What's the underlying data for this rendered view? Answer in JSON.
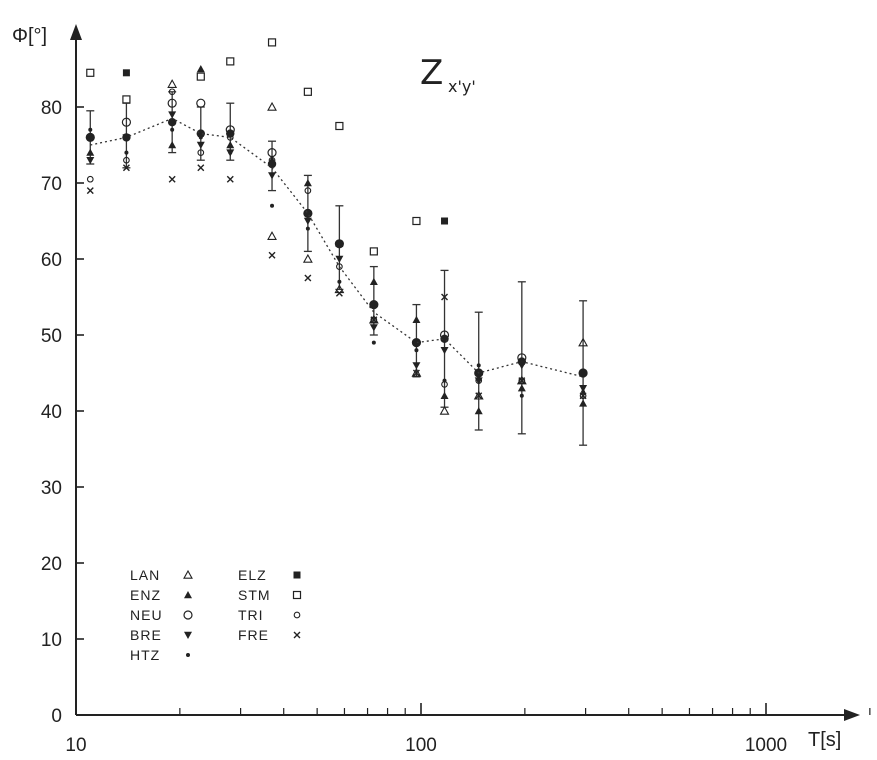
{
  "chart_data": {
    "type": "scatter",
    "title": "Z",
    "title_subscript": "x'y'",
    "xlabel": "T[s]",
    "ylabel": "Φ[°]",
    "x_scale": "log",
    "xlim": [
      10,
      3000
    ],
    "ylim": [
      0,
      90
    ],
    "x_ticks": [
      10,
      100,
      1000
    ],
    "x_tick_labels": [
      "10",
      "100",
      "1000"
    ],
    "y_ticks": [
      0,
      10,
      20,
      30,
      40,
      50,
      60,
      70,
      80
    ],
    "y_tick_labels": [
      "0",
      "10",
      "20",
      "30",
      "40",
      "50",
      "60",
      "70",
      "80"
    ],
    "grid": false,
    "legend_position": "bottom-left",
    "legend": [
      {
        "label": "LAN",
        "marker": "triangle"
      },
      {
        "label": "ENZ",
        "marker": "filled-triangle"
      },
      {
        "label": "NEU",
        "marker": "circle"
      },
      {
        "label": "BRE",
        "marker": "inverted-triangle"
      },
      {
        "label": "HTZ",
        "marker": "dot"
      },
      {
        "label": "ELZ",
        "marker": "filled-square"
      },
      {
        "label": "STM",
        "marker": "square"
      },
      {
        "label": "TRI",
        "marker": "small-circle"
      },
      {
        "label": "FRE",
        "marker": "cross"
      }
    ],
    "mean_curve": {
      "x": [
        11,
        14,
        19,
        23,
        28,
        37,
        47,
        58,
        73,
        97,
        117,
        147,
        196,
        295
      ],
      "y": [
        75,
        76,
        78.5,
        76.5,
        76,
        72,
        66,
        59,
        53,
        49,
        49.5,
        45,
        46.5,
        44.5
      ]
    },
    "error_bars": {
      "x": [
        11,
        14,
        19,
        23,
        28,
        37,
        47,
        58,
        73,
        97,
        117,
        147,
        196,
        295
      ],
      "mean": [
        76,
        76,
        78,
        76.5,
        76.5,
        72.5,
        66,
        62,
        54,
        49,
        49.5,
        45,
        46.5,
        45
      ],
      "low": [
        72.5,
        72,
        74,
        73,
        73,
        69,
        61,
        56,
        50,
        44.5,
        40.5,
        37.5,
        37,
        35.5
      ],
      "high": [
        79.5,
        80.5,
        82,
        80,
        80.5,
        75.5,
        71,
        67,
        59,
        54,
        58.5,
        53,
        57,
        54.5
      ]
    },
    "series": [
      {
        "name": "STM",
        "x": [
          11,
          14,
          23,
          28,
          37,
          47,
          58,
          73,
          97
        ],
        "y": [
          84.5,
          81,
          84,
          86,
          88.5,
          82,
          77.5,
          61,
          65
        ]
      },
      {
        "name": "ELZ",
        "x": [
          14,
          117
        ],
        "y": [
          84.5,
          65
        ]
      },
      {
        "name": "LAN",
        "x": [
          19,
          37,
          37,
          47,
          58,
          73,
          97,
          117,
          147,
          196,
          295
        ],
        "y": [
          83,
          80,
          63,
          60,
          56,
          52,
          45,
          40,
          42,
          44,
          49
        ]
      },
      {
        "name": "ENZ",
        "x": [
          23,
          11,
          19,
          28,
          37,
          47,
          58,
          73,
          97,
          117,
          147,
          196,
          295
        ],
        "y": [
          85,
          74,
          75,
          75,
          73,
          70,
          62,
          57,
          52,
          42,
          40,
          43,
          41
        ]
      },
      {
        "name": "NEU",
        "x": [
          11,
          14,
          19,
          23,
          28,
          37,
          47,
          58,
          73,
          97,
          117,
          147,
          196,
          295
        ],
        "y": [
          76,
          78,
          80.5,
          80.5,
          77,
          74,
          66,
          62,
          54,
          49,
          50,
          45,
          47,
          45
        ]
      },
      {
        "name": "BRE",
        "x": [
          11,
          14,
          19,
          23,
          28,
          37,
          47,
          58,
          73,
          97,
          117,
          147,
          196,
          295
        ],
        "y": [
          73,
          76,
          79,
          75,
          74,
          71,
          65,
          60,
          51,
          46,
          48,
          44,
          46,
          43
        ]
      },
      {
        "name": "HTZ",
        "x": [
          11,
          14,
          19,
          23,
          28,
          37,
          47,
          58,
          73,
          97,
          117,
          147,
          196,
          295
        ],
        "y": [
          77,
          74,
          77,
          76,
          74,
          67,
          64,
          57,
          49,
          48,
          44,
          46,
          42,
          42.5
        ]
      },
      {
        "name": "TRI",
        "x": [
          11,
          14,
          19,
          23,
          28,
          37,
          47,
          58,
          73,
          97,
          117,
          147,
          196,
          295
        ],
        "y": [
          70.5,
          73,
          82,
          74,
          76,
          73,
          69,
          59,
          52,
          49,
          43.5,
          44,
          44,
          42
        ]
      },
      {
        "name": "FRE",
        "x": [
          11,
          14,
          19,
          23,
          28,
          37,
          47,
          58,
          73,
          97,
          117,
          147,
          196,
          295
        ],
        "y": [
          69,
          72,
          70.5,
          72,
          70.5,
          60.5,
          57.5,
          55.5,
          52,
          45,
          55,
          42,
          44,
          42
        ]
      }
    ]
  }
}
